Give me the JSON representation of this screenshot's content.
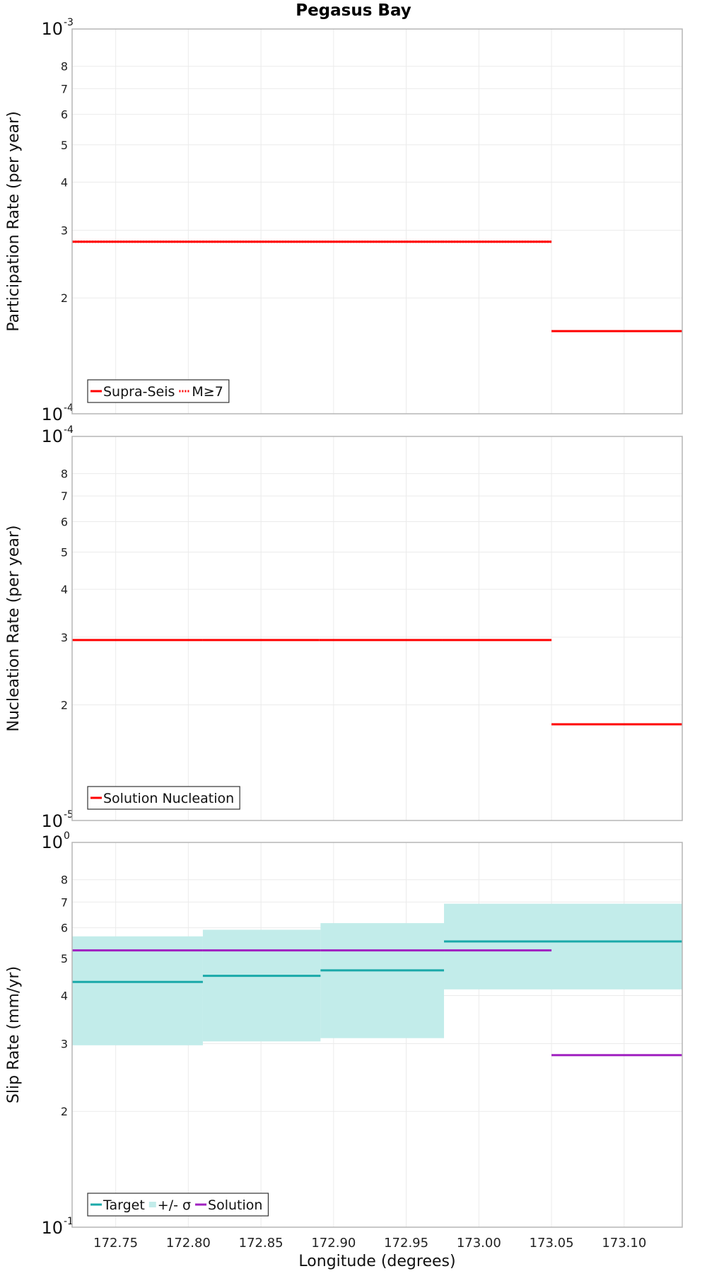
{
  "chart_data": [
    {
      "type": "line",
      "title": "Pegasus Bay",
      "xlabel": "",
      "ylabel": "Participation Rate (per year)",
      "yscale": "log",
      "ylim": [
        0.0001,
        0.001
      ],
      "xlim": [
        172.72,
        173.14
      ],
      "grid": true,
      "legend_position": "bottom-left",
      "decade_labels": [
        {
          "base": "10",
          "exp": "-4",
          "value": 0.0001
        },
        {
          "base": "10",
          "exp": "-3",
          "value": 0.001
        }
      ],
      "minor_ticks": [
        {
          "label": "2",
          "value": 0.0002
        },
        {
          "label": "3",
          "value": 0.0003
        },
        {
          "label": "4",
          "value": 0.0004
        },
        {
          "label": "5",
          "value": 0.0005
        },
        {
          "label": "6",
          "value": 0.0006
        },
        {
          "label": "7",
          "value": 0.0007
        },
        {
          "label": "8",
          "value": 0.0008
        }
      ],
      "series": [
        {
          "name": "Supra-Seis",
          "color": "#ff0000",
          "style": "solid",
          "segments": [
            {
              "x": [
                172.72,
                172.81
              ],
              "y": 0.00028
            },
            {
              "x": [
                172.81,
                172.89
              ],
              "y": 0.00028
            },
            {
              "x": [
                172.89,
                172.975
              ],
              "y": 0.00028
            },
            {
              "x": [
                172.975,
                173.05
              ],
              "y": 0.00028
            },
            {
              "x": [
                173.05,
                173.14
              ],
              "y": 0.000164
            }
          ]
        },
        {
          "name": "M≥7",
          "color": "#ff0000",
          "style": "dotted",
          "segments": [
            {
              "x": [
                172.72,
                172.81
              ],
              "y": 0.00028
            },
            {
              "x": [
                172.81,
                172.89
              ],
              "y": 0.00028
            },
            {
              "x": [
                172.89,
                172.975
              ],
              "y": 0.00028
            },
            {
              "x": [
                172.975,
                173.05
              ],
              "y": 0.00028
            }
          ]
        }
      ]
    },
    {
      "type": "line",
      "title": "",
      "xlabel": "",
      "ylabel": "Nucleation Rate (per year)",
      "yscale": "log",
      "ylim": [
        1e-05,
        0.0001
      ],
      "xlim": [
        172.72,
        173.14
      ],
      "grid": true,
      "legend_position": "bottom-left",
      "decade_labels": [
        {
          "base": "10",
          "exp": "-5",
          "value": 1e-05
        },
        {
          "base": "10",
          "exp": "-4",
          "value": 0.0001
        }
      ],
      "minor_ticks": [
        {
          "label": "2",
          "value": 2e-05
        },
        {
          "label": "3",
          "value": 3e-05
        },
        {
          "label": "4",
          "value": 4e-05
        },
        {
          "label": "5",
          "value": 5e-05
        },
        {
          "label": "6",
          "value": 6e-05
        },
        {
          "label": "7",
          "value": 7e-05
        },
        {
          "label": "8",
          "value": 8e-05
        }
      ],
      "series": [
        {
          "name": "Solution Nucleation",
          "color": "#ff0000",
          "style": "solid",
          "segments": [
            {
              "x": [
                172.72,
                172.81
              ],
              "y": 2.95e-05
            },
            {
              "x": [
                172.81,
                172.89
              ],
              "y": 2.95e-05
            },
            {
              "x": [
                172.89,
                172.975
              ],
              "y": 2.95e-05
            },
            {
              "x": [
                172.975,
                173.05
              ],
              "y": 2.95e-05
            },
            {
              "x": [
                173.05,
                173.14
              ],
              "y": 1.78e-05
            }
          ]
        }
      ]
    },
    {
      "type": "line",
      "title": "",
      "xlabel": "Longitude (degrees)",
      "ylabel": "Slip Rate (mm/yr)",
      "yscale": "log",
      "ylim": [
        0.1,
        1
      ],
      "xlim": [
        172.72,
        173.14
      ],
      "grid": true,
      "legend_position": "bottom-left",
      "decade_labels": [
        {
          "base": "10",
          "exp": "-1",
          "value": 0.1
        },
        {
          "base": "10",
          "exp": "0",
          "value": 1
        }
      ],
      "minor_ticks": [
        {
          "label": "2",
          "value": 0.2
        },
        {
          "label": "3",
          "value": 0.3
        },
        {
          "label": "4",
          "value": 0.4
        },
        {
          "label": "5",
          "value": 0.5
        },
        {
          "label": "6",
          "value": 0.6
        },
        {
          "label": "7",
          "value": 0.7
        },
        {
          "label": "8",
          "value": 0.8
        }
      ],
      "x_ticks": [
        "172.75",
        "172.80",
        "172.85",
        "172.90",
        "172.95",
        "173.00",
        "173.05",
        "173.10"
      ],
      "bands": {
        "name": "+/- σ",
        "color": "#c2ecea",
        "segments": [
          {
            "x": [
              172.72,
              172.81
            ],
            "low": 0.297,
            "high": 0.57
          },
          {
            "x": [
              172.81,
              172.891
            ],
            "low": 0.304,
            "high": 0.593
          },
          {
            "x": [
              172.891,
              172.976
            ],
            "low": 0.31,
            "high": 0.617
          },
          {
            "x": [
              172.976,
              173.14
            ],
            "low": 0.415,
            "high": 0.693
          }
        ]
      },
      "series": [
        {
          "name": "Target",
          "color": "#1aa9a9",
          "style": "solid",
          "segments": [
            {
              "x": [
                172.72,
                172.81
              ],
              "y": 0.434
            },
            {
              "x": [
                172.81,
                172.891
              ],
              "y": 0.45
            },
            {
              "x": [
                172.891,
                172.976
              ],
              "y": 0.465
            },
            {
              "x": [
                172.976,
                173.14
              ],
              "y": 0.553
            }
          ]
        },
        {
          "name": "Solution",
          "color": "#a020c0",
          "style": "solid",
          "segments": [
            {
              "x": [
                172.72,
                172.81
              ],
              "y": 0.524
            },
            {
              "x": [
                172.81,
                172.891
              ],
              "y": 0.524
            },
            {
              "x": [
                172.891,
                172.976
              ],
              "y": 0.524
            },
            {
              "x": [
                172.976,
                173.05
              ],
              "y": 0.524
            },
            {
              "x": [
                173.05,
                173.14
              ],
              "y": 0.28
            }
          ]
        }
      ]
    }
  ]
}
